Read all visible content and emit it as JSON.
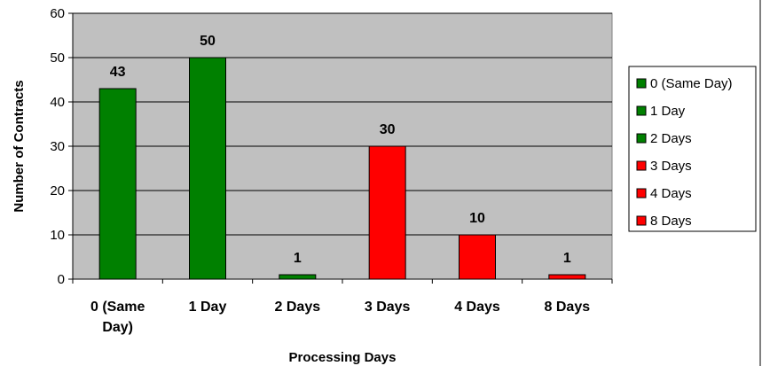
{
  "chart_data": {
    "type": "bar",
    "title": "",
    "xlabel": "Processing Days",
    "ylabel": "Number of Contracts",
    "ylim": [
      0,
      60
    ],
    "yticks": [
      0,
      10,
      20,
      30,
      40,
      50,
      60
    ],
    "grid": true,
    "legend_position": "right",
    "plot_background": "#c0c0c0",
    "categories": [
      "0 (Same Day)",
      "1 Day",
      "2 Days",
      "3 Days",
      "4 Days",
      "8 Days"
    ],
    "category_label_lines": [
      [
        "0 (Same",
        "Day)"
      ],
      [
        "1 Day"
      ],
      [
        "2 Days"
      ],
      [
        "3 Days"
      ],
      [
        "4 Days"
      ],
      [
        "8 Days"
      ]
    ],
    "values": [
      43,
      50,
      1,
      30,
      10,
      1
    ],
    "data_labels": [
      "43",
      "50",
      "1",
      "30",
      "10",
      "1"
    ],
    "colors": [
      "#008000",
      "#008000",
      "#008000",
      "#ff0000",
      "#ff0000",
      "#ff0000"
    ],
    "legend": [
      {
        "label": "0 (Same Day)",
        "color": "#008000"
      },
      {
        "label": "1 Day",
        "color": "#008000"
      },
      {
        "label": "2 Days",
        "color": "#008000"
      },
      {
        "label": "3 Days",
        "color": "#ff0000"
      },
      {
        "label": "4 Days",
        "color": "#ff0000"
      },
      {
        "label": "8 Days",
        "color": "#ff0000"
      }
    ]
  }
}
